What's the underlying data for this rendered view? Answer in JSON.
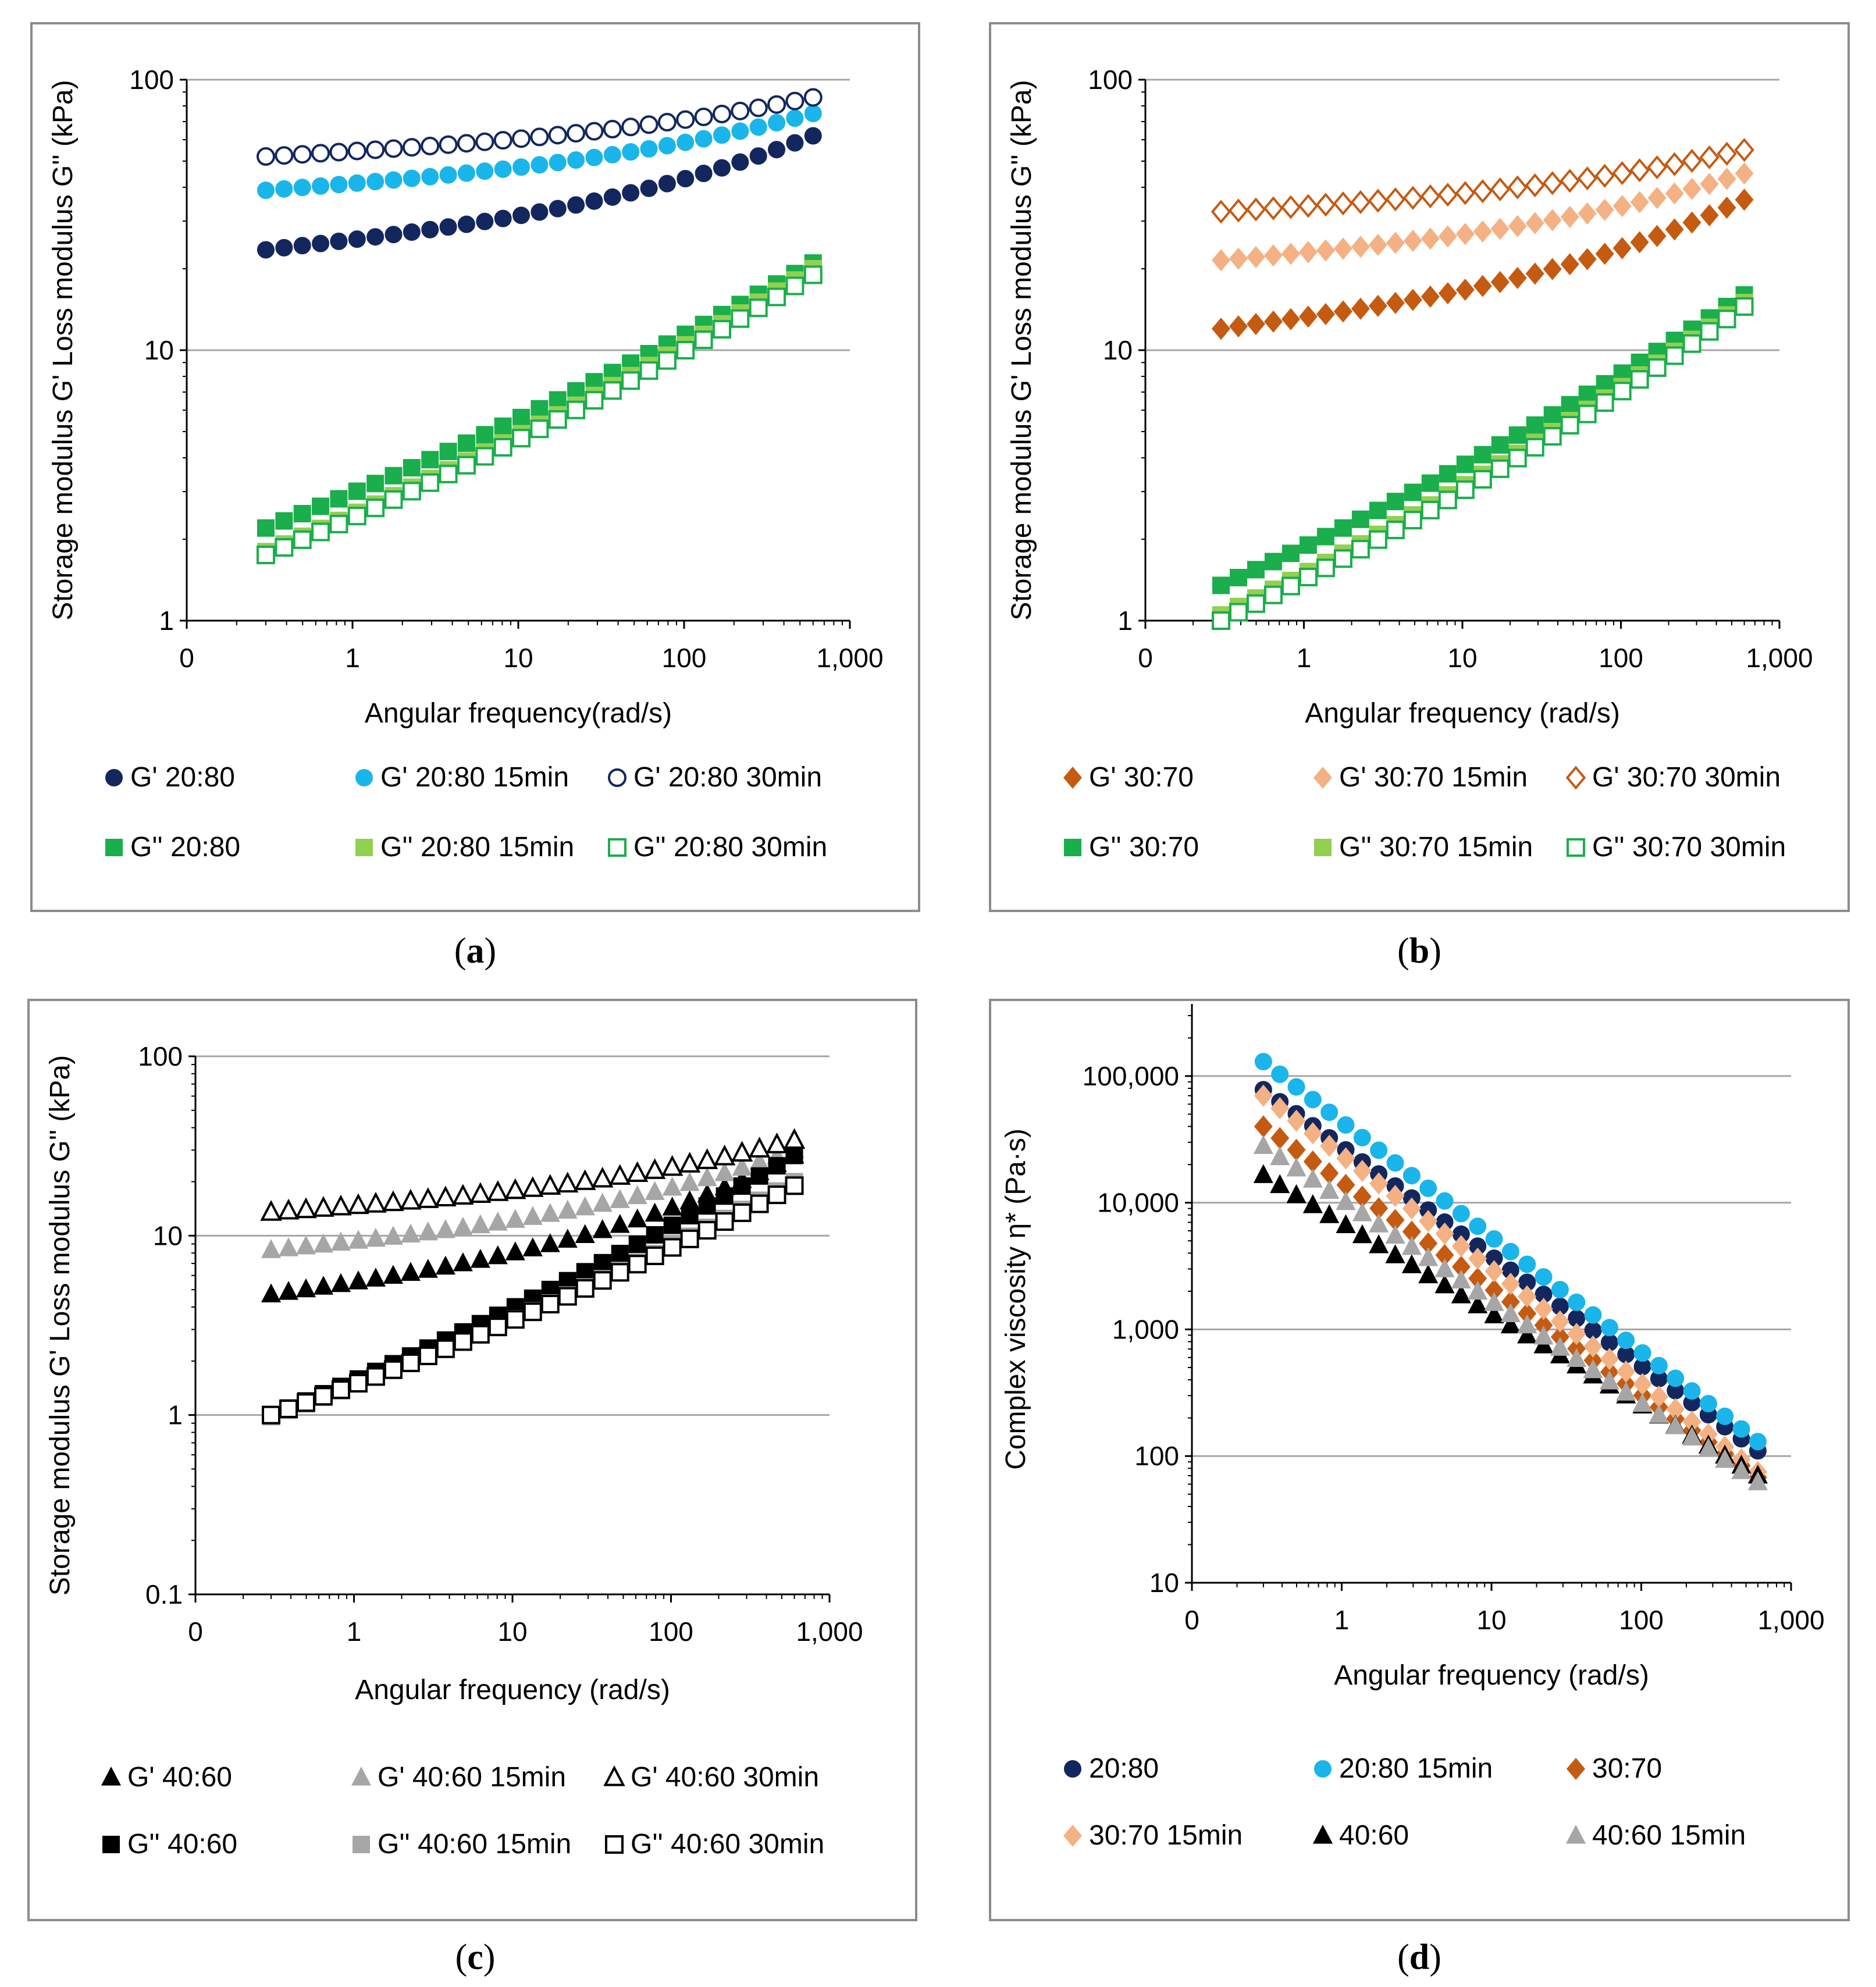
{
  "captions": {
    "a": "a",
    "b": "b",
    "c": "c",
    "d": "d"
  },
  "chart_data": [
    {
      "id": "a",
      "type": "scatter",
      "xscale": "log",
      "yscale": "log",
      "xlabel": "Angular frequency(rad/s)",
      "ylabel": "Storage modulus G' Loss modulus G'' (kPa)",
      "xticks": [
        "0",
        "1",
        "10",
        "100",
        "1,000"
      ],
      "yticks": [
        "1",
        "10",
        "100"
      ],
      "xlim": [
        0.1,
        1000
      ],
      "ylim": [
        1,
        100
      ],
      "grid": true,
      "legend_position": "bottom",
      "series": [
        {
          "name": "G' 20:80",
          "marker": "circle",
          "color": "#13275e",
          "fill": true,
          "start": 23.5,
          "end": 62
        },
        {
          "name": "G' 20:80 15min",
          "marker": "circle",
          "color": "#1ab5ea",
          "fill": true,
          "start": 39,
          "end": 75
        },
        {
          "name": "G' 20:80 30min",
          "marker": "circle",
          "color": "#13275e",
          "fill": false,
          "start": 52,
          "end": 86
        },
        {
          "name": "G'' 20:80",
          "marker": "square",
          "color": "#1aae4c",
          "fill": true,
          "start": 2.2,
          "end": 21
        },
        {
          "name": "G'' 20:80 15min",
          "marker": "square",
          "color": "#92d050",
          "fill": true,
          "start": 1.8,
          "end": 20
        },
        {
          "name": "G'' 20:80 30min",
          "marker": "square",
          "color": "#1aae4c",
          "fill": false,
          "start": 1.75,
          "end": 19
        }
      ]
    },
    {
      "id": "b",
      "type": "scatter",
      "xscale": "log",
      "yscale": "log",
      "xlabel": "Angular frequency (rad/s)",
      "ylabel": "Storage modulus G' Loss modulus G'' (kPa)",
      "xticks": [
        "0",
        "1",
        "10",
        "100",
        "1,000"
      ],
      "yticks": [
        "1",
        "10",
        "100"
      ],
      "xlim": [
        0.1,
        1000
      ],
      "ylim": [
        1,
        100
      ],
      "grid": true,
      "legend_position": "bottom",
      "series": [
        {
          "name": "G' 30:70",
          "marker": "diamond",
          "color": "#c55a11",
          "fill": true,
          "start": 12,
          "end": 36
        },
        {
          "name": "G' 30:70 15min",
          "marker": "diamond",
          "color": "#f4b183",
          "fill": true,
          "start": 21.5,
          "end": 45
        },
        {
          "name": "G' 30:70 30min",
          "marker": "diamond",
          "color": "#c55a11",
          "fill": false,
          "start": 32.5,
          "end": 55
        },
        {
          "name": "G'' 30:70",
          "marker": "square",
          "color": "#1aae4c",
          "fill": true,
          "start": 1.35,
          "end": 16
        },
        {
          "name": "G'' 30:70 15min",
          "marker": "square",
          "color": "#92d050",
          "fill": true,
          "start": 1.05,
          "end": 15
        },
        {
          "name": "G'' 30:70 30min",
          "marker": "square",
          "color": "#1aae4c",
          "fill": false,
          "start": 1.0,
          "end": 14.5
        }
      ]
    },
    {
      "id": "c",
      "type": "scatter",
      "xscale": "log",
      "yscale": "log",
      "xlabel": "Angular frequency (rad/s)",
      "ylabel": "Storage modulus G' Loss modulus G'' (kPa)",
      "xticks": [
        "0",
        "1",
        "10",
        "100",
        "1,000"
      ],
      "yticks": [
        "0.1",
        "1",
        "10",
        "100"
      ],
      "xlim": [
        0.1,
        1000
      ],
      "ylim": [
        0.1,
        100
      ],
      "grid": true,
      "legend_position": "bottom",
      "series": [
        {
          "name": "G' 40:60",
          "marker": "triangle",
          "color": "#000000",
          "fill": true,
          "start": 4.7,
          "end": 28
        },
        {
          "name": "G' 40:60 15min",
          "marker": "triangle",
          "color": "#a6a6a6",
          "fill": true,
          "start": 8.3,
          "end": 30
        },
        {
          "name": "G' 40:60 30min",
          "marker": "triangle",
          "color": "#000000",
          "fill": false,
          "start": 13.5,
          "end": 34
        },
        {
          "name": "G'' 40:60",
          "marker": "square",
          "color": "#000000",
          "fill": true,
          "start": 1.0,
          "end": 28
        },
        {
          "name": "G'' 40:60 15min",
          "marker": "square",
          "color": "#a6a6a6",
          "fill": true,
          "start": 0.98,
          "end": 20
        },
        {
          "name": "G'' 40:60 30min",
          "marker": "square",
          "color": "#000000",
          "fill": false,
          "start": 1.0,
          "end": 19
        }
      ]
    },
    {
      "id": "d",
      "type": "scatter",
      "xscale": "log",
      "yscale": "log",
      "xlabel": "Angular frequency (rad/s)",
      "ylabel": "Complex viscosity η* (Pa·s)",
      "xticks": [
        "0",
        "1",
        "10",
        "100",
        "1,000"
      ],
      "yticks": [
        "10",
        "100",
        "1,000",
        "10,000",
        "100,000"
      ],
      "xlim": [
        0.1,
        1000
      ],
      "ylim": [
        10,
        300000
      ],
      "grid": true,
      "legend_position": "bottom",
      "series": [
        {
          "name": "20:80",
          "marker": "circle",
          "color": "#13275e",
          "fill": true,
          "start": 78000,
          "end": 110
        },
        {
          "name": "20:80 15min",
          "marker": "circle",
          "color": "#1ab5ea",
          "fill": true,
          "start": 130000,
          "end": 130
        },
        {
          "name": "30:70",
          "marker": "diamond",
          "color": "#c55a11",
          "fill": true,
          "start": 40000,
          "end": 68
        },
        {
          "name": "30:70 15min",
          "marker": "diamond",
          "color": "#f4b183",
          "fill": true,
          "start": 70000,
          "end": 75
        },
        {
          "name": "40:60",
          "marker": "triangle",
          "color": "#000000",
          "fill": true,
          "start": 16500,
          "end": 70
        },
        {
          "name": "40:60 15min",
          "marker": "triangle",
          "color": "#a6a6a6",
          "fill": true,
          "start": 28000,
          "end": 62
        }
      ]
    }
  ]
}
